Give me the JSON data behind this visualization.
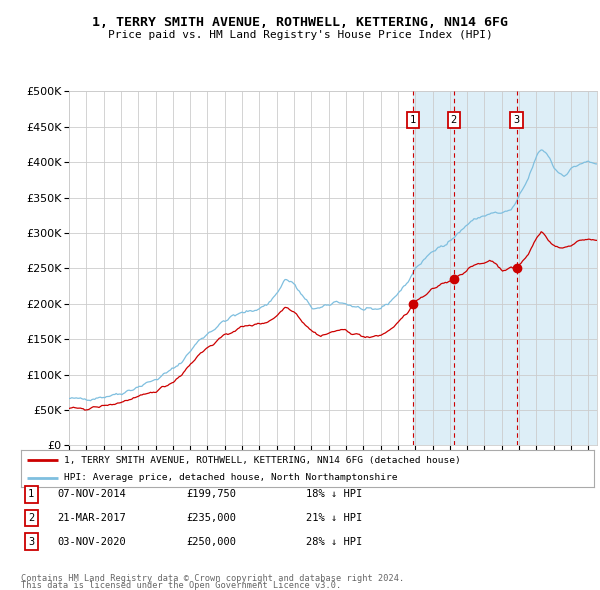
{
  "title": "1, TERRY SMITH AVENUE, ROTHWELL, KETTERING, NN14 6FG",
  "subtitle": "Price paid vs. HM Land Registry's House Price Index (HPI)",
  "legend_line1": "1, TERRY SMITH AVENUE, ROTHWELL, KETTERING, NN14 6FG (detached house)",
  "legend_line2": "HPI: Average price, detached house, North Northamptonshire",
  "footer1": "Contains HM Land Registry data © Crown copyright and database right 2024.",
  "footer2": "This data is licensed under the Open Government Licence v3.0.",
  "transactions": [
    {
      "num": 1,
      "date": "07-NOV-2014",
      "price": "£199,750",
      "pct": "18% ↓ HPI",
      "year": 2014.85,
      "price_val": 199750
    },
    {
      "num": 2,
      "date": "21-MAR-2017",
      "price": "£235,000",
      "pct": "21% ↓ HPI",
      "year": 2017.22,
      "price_val": 235000
    },
    {
      "num": 3,
      "date": "03-NOV-2020",
      "price": "£250,000",
      "pct": "28% ↓ HPI",
      "year": 2020.85,
      "price_val": 250000
    }
  ],
  "hpi_color": "#7fbfdf",
  "hpi_fill_color": "#ddeef7",
  "price_color": "#cc0000",
  "dot_color": "#cc0000",
  "vline_color": "#cc0000",
  "background_color": "#ffffff",
  "grid_color": "#cccccc",
  "ylim": [
    0,
    500000
  ],
  "xlim_start": 1995,
  "xlim_end": 2025.5,
  "shaded_start": 2014.85
}
